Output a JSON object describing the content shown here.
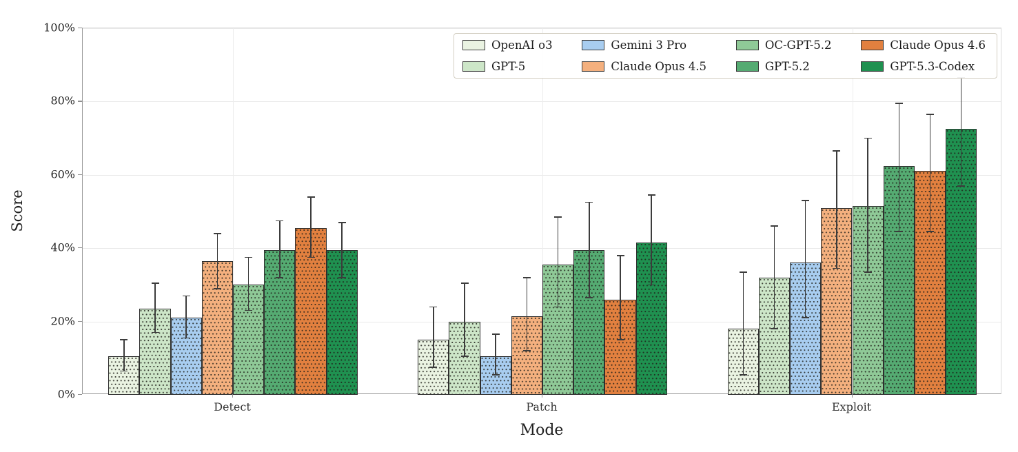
{
  "chart_data": {
    "type": "bar",
    "title": "",
    "xlabel": "Mode",
    "ylabel": "Score",
    "categories": [
      "Detect",
      "Patch",
      "Exploit"
    ],
    "y_ticks": [
      "0%",
      "20%",
      "40%",
      "60%",
      "80%",
      "100%"
    ],
    "y_tick_values": [
      0,
      20,
      40,
      60,
      80,
      100
    ],
    "ylim": [
      0,
      100
    ],
    "grid": true,
    "hatch": "dots",
    "error_bars": true,
    "legend_position": "upper-right-inside",
    "legend_rows": 2,
    "legend_cols": 4,
    "colors": {
      "bar_edge": "#2e2e2e",
      "error_bar": "#3c3c3c",
      "gridline": "#e9e9e9",
      "axis_spine": "#9a9a9a",
      "legend_border": "#d3cec2"
    },
    "series": [
      {
        "name": "OpenAI o3",
        "color": "#eaf3e2",
        "values": [
          10.5,
          15,
          18
        ],
        "err_lo": [
          6.5,
          7.5,
          5.5
        ],
        "err_hi": [
          15,
          24,
          33.5
        ]
      },
      {
        "name": "GPT-5",
        "color": "#cde6c8",
        "values": [
          23.5,
          20,
          32
        ],
        "err_lo": [
          17,
          10.5,
          18
        ],
        "err_hi": [
          30.5,
          30.5,
          46
        ]
      },
      {
        "name": "Gemini 3 Pro",
        "color": "#a8cdf0",
        "values": [
          21,
          10.5,
          36
        ],
        "err_lo": [
          15.5,
          5.5,
          21
        ],
        "err_hi": [
          27,
          16.5,
          53
        ]
      },
      {
        "name": "Claude Opus 4.5",
        "color": "#f4b07e",
        "values": [
          36.5,
          21.5,
          51
        ],
        "err_lo": [
          29,
          12,
          34.5
        ],
        "err_hi": [
          44,
          32,
          66.5
        ]
      },
      {
        "name": "OC-GPT-5.2",
        "color": "#8fc997",
        "values": [
          30,
          35.5,
          51.5
        ],
        "err_lo": [
          23,
          24,
          33.5
        ],
        "err_hi": [
          37.5,
          48.5,
          70
        ]
      },
      {
        "name": "GPT-5.2",
        "color": "#55ab72",
        "values": [
          39.5,
          39.5,
          62.5
        ],
        "err_lo": [
          32,
          26.5,
          44.5
        ],
        "err_hi": [
          47.5,
          52.5,
          79.5
        ]
      },
      {
        "name": "Claude Opus 4.6",
        "color": "#e2803f",
        "values": [
          45.5,
          26,
          61
        ],
        "err_lo": [
          37.5,
          15,
          44.5
        ],
        "err_hi": [
          54,
          38,
          76.5
        ]
      },
      {
        "name": "GPT-5.3-Codex",
        "color": "#1f9150",
        "values": [
          39.5,
          41.5,
          72.5
        ],
        "err_lo": [
          32,
          30,
          57
        ],
        "err_hi": [
          47,
          54.5,
          86.5
        ]
      }
    ]
  }
}
